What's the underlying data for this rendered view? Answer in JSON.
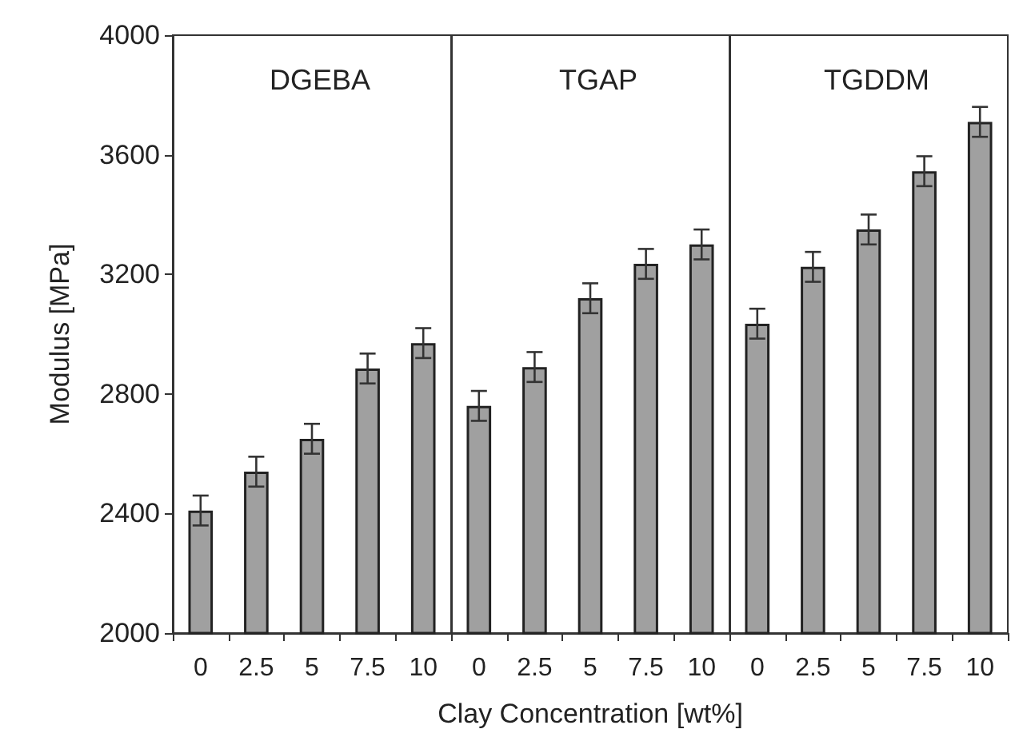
{
  "chart_data": [
    {
      "type": "bar",
      "title": "DGEBA",
      "ylabel": "Modulus [MPa]",
      "categories": [
        "0",
        "2.5",
        "5",
        "7.5",
        "10"
      ],
      "values": [
        2410,
        2540,
        2650,
        2885,
        2970
      ],
      "errors": [
        50,
        50,
        50,
        50,
        50
      ],
      "color": "#a0a0a0",
      "ylim": [
        2000,
        4000
      ],
      "yticks": [
        2000,
        2400,
        2800,
        3200,
        3600,
        4000
      ],
      "grid": false
    },
    {
      "type": "bar",
      "title": "TGAP",
      "xlabel": "Clay Concentration [wt%]",
      "categories": [
        "0",
        "2.5",
        "5",
        "7.5",
        "10"
      ],
      "values": [
        2760,
        2890,
        3120,
        3235,
        3300
      ],
      "errors": [
        50,
        50,
        50,
        50,
        50
      ],
      "color": "#a0a0a0",
      "ylim": [
        2000,
        4000
      ],
      "yticks": [
        2000,
        2400,
        2800,
        3200,
        3600,
        4000
      ],
      "grid": false,
      "tick_labels": "x"
    },
    {
      "type": "bar",
      "title": "TGDDM",
      "categories": [
        "0",
        "2.5",
        "5",
        "7.5",
        "10"
      ],
      "values": [
        3035,
        3225,
        3350,
        3545,
        3710
      ],
      "errors": [
        50,
        50,
        50,
        50,
        50
      ],
      "color": "#a0a0a0",
      "ylim": [
        2000,
        4000
      ],
      "yticks": [
        2000,
        2400,
        2800,
        3200,
        3600,
        4000
      ],
      "grid": false,
      "tick_labels": "x"
    }
  ]
}
